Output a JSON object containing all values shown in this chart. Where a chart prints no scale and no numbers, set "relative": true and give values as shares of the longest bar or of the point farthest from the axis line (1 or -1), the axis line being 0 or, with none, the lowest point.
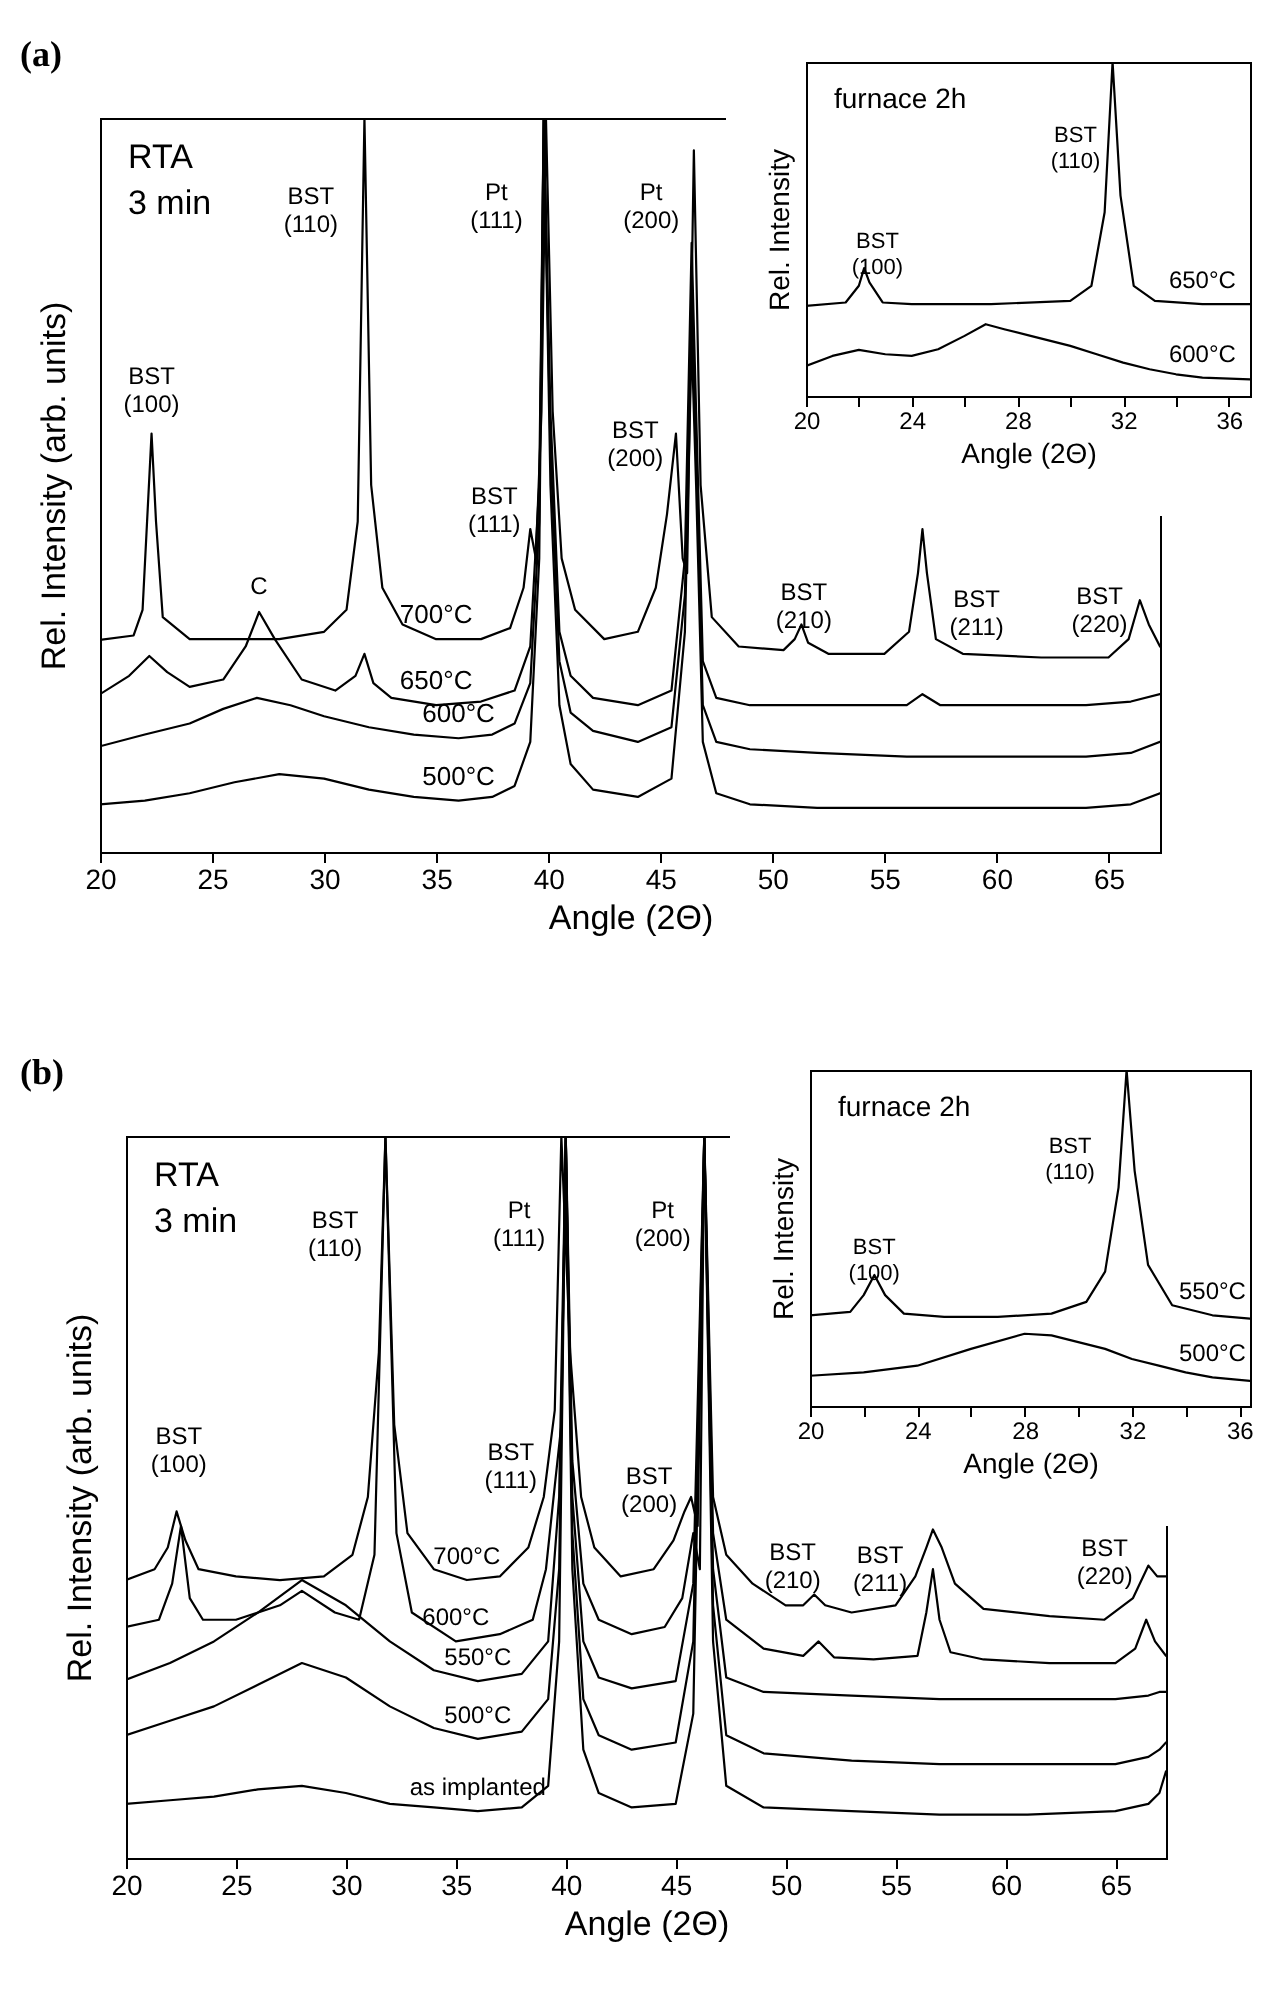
{
  "chart_data": [
    {
      "type": "line",
      "title": "(a)",
      "xlabel": "Angle (2Θ)",
      "ylabel": "Rel. Intensity (arb. units)",
      "relative": true,
      "xlim": [
        20,
        67.3
      ],
      "xticks": [
        20,
        25,
        30,
        35,
        40,
        45,
        50,
        55,
        60,
        65
      ],
      "annotations": [
        "RTA\n3 min",
        "BST\n(100)",
        "C",
        "BST\n(110)",
        "Pt\n(111)",
        "BST\n(111)",
        "Pt\n(200)",
        "BST\n(200)",
        "BST\n(210)",
        "BST\n(211)",
        "BST\n(220)"
      ],
      "series": [
        {
          "name": "700°C",
          "color": "#000000",
          "x": [
            20,
            21.5,
            21.9,
            22.1,
            22.3,
            22.5,
            22.8,
            24,
            26,
            28,
            30,
            31,
            31.5,
            31.8,
            32.1,
            32.6,
            33.5,
            35,
            37,
            38.3,
            38.9,
            39.2,
            39.45,
            39.7,
            39.9,
            40.2,
            40.6,
            41.2,
            42.5,
            44,
            44.8,
            45.3,
            45.7,
            46,
            46.2,
            46.5,
            46.8,
            47.3,
            48.5,
            50.5,
            51,
            51.3,
            51.6,
            52.5,
            55,
            56.1,
            56.5,
            56.7,
            56.9,
            57.3,
            58.5,
            62,
            65,
            65.9,
            66.4,
            66.8,
            67.3
          ],
          "values": [
            0.289,
            0.295,
            0.33,
            0.45,
            0.57,
            0.45,
            0.32,
            0.29,
            0.29,
            0.29,
            0.3,
            0.33,
            0.45,
            1,
            0.5,
            0.36,
            0.31,
            0.29,
            0.29,
            0.305,
            0.36,
            0.44,
            0.4,
            0.6,
            1,
            0.6,
            0.4,
            0.33,
            0.29,
            0.3,
            0.36,
            0.46,
            0.57,
            0.4,
            0.38,
            0.956,
            0.5,
            0.32,
            0.28,
            0.275,
            0.29,
            0.31,
            0.285,
            0.27,
            0.27,
            0.3,
            0.38,
            0.44,
            0.38,
            0.29,
            0.27,
            0.265,
            0.265,
            0.29,
            0.343,
            0.31,
            0.28
          ]
        },
        {
          "name": "650°C",
          "color": "#000000",
          "x": [
            20,
            21.3,
            22.2,
            23,
            24,
            25.5,
            26.5,
            27.1,
            27.8,
            29,
            30.5,
            31.4,
            31.8,
            32.2,
            33,
            35,
            37,
            38.5,
            39.2,
            39.6,
            39.8,
            40.1,
            40.5,
            41,
            42,
            44,
            45.5,
            46.1,
            46.4,
            46.6,
            46.9,
            47.5,
            49,
            52,
            56,
            56.7,
            57.5,
            60,
            64,
            66,
            67.3
          ],
          "values": [
            0.215,
            0.24,
            0.267,
            0.245,
            0.225,
            0.235,
            0.28,
            0.327,
            0.29,
            0.235,
            0.22,
            0.24,
            0.27,
            0.23,
            0.21,
            0.2,
            0.205,
            0.22,
            0.28,
            0.5,
            1,
            0.6,
            0.3,
            0.24,
            0.21,
            0.2,
            0.22,
            0.4,
            0.83,
            0.6,
            0.26,
            0.21,
            0.2,
            0.2,
            0.2,
            0.215,
            0.2,
            0.2,
            0.2,
            0.205,
            0.215
          ]
        },
        {
          "name": "600°C",
          "color": "#000000",
          "x": [
            20,
            22,
            24,
            25.5,
            27,
            28.5,
            30,
            32,
            34,
            36,
            37.5,
            38.5,
            39.2,
            39.6,
            39.8,
            40.1,
            40.5,
            41,
            42,
            44,
            45.5,
            46.1,
            46.4,
            46.6,
            46.9,
            47.5,
            49,
            52,
            56,
            60,
            64,
            66,
            67.3
          ],
          "values": [
            0.144,
            0.16,
            0.175,
            0.195,
            0.21,
            0.2,
            0.185,
            0.17,
            0.16,
            0.155,
            0.16,
            0.175,
            0.23,
            0.45,
            1,
            0.55,
            0.26,
            0.19,
            0.165,
            0.15,
            0.17,
            0.35,
            0.77,
            0.55,
            0.2,
            0.15,
            0.14,
            0.135,
            0.13,
            0.13,
            0.13,
            0.135,
            0.15
          ]
        },
        {
          "name": "500°C",
          "color": "#000000",
          "x": [
            20,
            22,
            24,
            26,
            28,
            30,
            32,
            34,
            36,
            37.5,
            38.5,
            39.2,
            39.6,
            39.8,
            40.1,
            40.5,
            41,
            42,
            44,
            45.5,
            46.1,
            46.4,
            46.6,
            46.9,
            47.5,
            49,
            52,
            56,
            60,
            64,
            66,
            67.3
          ],
          "values": [
            0.065,
            0.07,
            0.08,
            0.095,
            0.106,
            0.1,
            0.085,
            0.075,
            0.07,
            0.075,
            0.09,
            0.15,
            0.4,
            1,
            0.5,
            0.2,
            0.12,
            0.085,
            0.075,
            0.1,
            0.3,
            0.7,
            0.5,
            0.15,
            0.08,
            0.065,
            0.06,
            0.06,
            0.06,
            0.06,
            0.065,
            0.08
          ]
        }
      ]
    },
    {
      "type": "line",
      "xlabel": "Angle (2Θ)",
      "ylabel": "Rel. Intensity",
      "relative": true,
      "xlim": [
        20,
        36.8
      ],
      "xticks": [
        20,
        {
          "value": 22,
          "label": null
        },
        24,
        {
          "value": 26,
          "label": null
        },
        28,
        {
          "value": 30,
          "label": null
        },
        32,
        {
          "value": 34,
          "label": null
        },
        36
      ],
      "annotations": [
        "furnace 2h",
        "BST\n(100)",
        "BST\n(110)"
      ],
      "series": [
        {
          "name": "650°C",
          "color": "#000000",
          "x": [
            20,
            21.5,
            22,
            22.2,
            22.4,
            22.9,
            24,
            27,
            30,
            30.8,
            31.3,
            31.6,
            31.9,
            32.4,
            33.2,
            35,
            36.8
          ],
          "values": [
            0.27,
            0.28,
            0.33,
            0.383,
            0.34,
            0.28,
            0.275,
            0.275,
            0.285,
            0.33,
            0.55,
            1,
            0.6,
            0.33,
            0.285,
            0.275,
            0.275
          ]
        },
        {
          "name": "600°C",
          "color": "#000000",
          "x": [
            20,
            21,
            22,
            23,
            24,
            25,
            26,
            26.8,
            27.5,
            28.5,
            30,
            31,
            32,
            33,
            34,
            35,
            36.8
          ],
          "values": [
            0.09,
            0.12,
            0.138,
            0.125,
            0.12,
            0.14,
            0.18,
            0.215,
            0.2,
            0.18,
            0.15,
            0.125,
            0.1,
            0.08,
            0.065,
            0.055,
            0.05
          ]
        }
      ]
    },
    {
      "type": "line",
      "title": "(b)",
      "xlabel": "Angle (2Θ)",
      "ylabel": "Rel. Intensity (arb. units)",
      "relative": true,
      "xlim": [
        20,
        67.3
      ],
      "xticks": [
        20,
        25,
        30,
        35,
        40,
        45,
        50,
        55,
        60,
        65
      ],
      "annotations": [
        "RTA\n3 min",
        "BST\n(100)",
        "BST\n(110)",
        "Pt\n(111)",
        "BST\n(111)",
        "Pt\n(200)",
        "BST\n(200)",
        "BST\n(210)",
        "BST\n(211)",
        "BST\n(220)"
      ],
      "series": [
        {
          "name": "700°C",
          "color": "#000000",
          "x": [
            20,
            21.3,
            21.9,
            22.3,
            22.7,
            23.3,
            25,
            27,
            29,
            30.3,
            31,
            31.5,
            31.8,
            32.2,
            32.8,
            34,
            35.5,
            37,
            38.3,
            39,
            39.5,
            39.8,
            40.2,
            40.7,
            41.3,
            42.5,
            44,
            44.9,
            45.4,
            45.7,
            46,
            46.3,
            46.7,
            47.3,
            48.5,
            50,
            50.8,
            51.3,
            51.8,
            53,
            55,
            55.9,
            56.4,
            56.7,
            57.1,
            57.7,
            59,
            62,
            64.5,
            65.8,
            66.5,
            66.9,
            67.3
          ],
          "values": [
            0.385,
            0.4,
            0.43,
            0.48,
            0.44,
            0.4,
            0.39,
            0.385,
            0.39,
            0.42,
            0.5,
            0.7,
            1,
            0.6,
            0.45,
            0.4,
            0.385,
            0.39,
            0.43,
            0.5,
            0.62,
            1,
            0.7,
            0.5,
            0.43,
            0.39,
            0.4,
            0.44,
            0.48,
            0.5,
            0.46,
            1,
            0.5,
            0.42,
            0.38,
            0.35,
            0.35,
            0.365,
            0.35,
            0.34,
            0.35,
            0.39,
            0.43,
            0.455,
            0.43,
            0.38,
            0.345,
            0.335,
            0.33,
            0.36,
            0.405,
            0.39,
            0.39
          ]
        },
        {
          "name": "600°C",
          "color": "#000000",
          "x": [
            20,
            21.5,
            22.1,
            22.5,
            22.9,
            23.5,
            25,
            27,
            28,
            29.5,
            30.6,
            31.3,
            31.8,
            32.3,
            33,
            35,
            37,
            38.5,
            39.1,
            39.5,
            39.8,
            40,
            40.3,
            40.8,
            41.5,
            43,
            44.5,
            45.3,
            45.8,
            46.1,
            46.3,
            46.7,
            47.3,
            49,
            50.8,
            51.5,
            52.2,
            54,
            56,
            56.4,
            56.7,
            57,
            57.5,
            59,
            62,
            65,
            65.9,
            66.4,
            66.8,
            67.3
          ],
          "values": [
            0.32,
            0.33,
            0.38,
            0.46,
            0.36,
            0.33,
            0.33,
            0.35,
            0.37,
            0.34,
            0.33,
            0.42,
            1,
            0.45,
            0.34,
            0.3,
            0.31,
            0.33,
            0.4,
            0.515,
            0.6,
            1,
            0.55,
            0.38,
            0.33,
            0.31,
            0.32,
            0.36,
            0.45,
            0.4,
            1,
            0.45,
            0.33,
            0.29,
            0.28,
            0.3,
            0.278,
            0.275,
            0.28,
            0.34,
            0.4,
            0.33,
            0.285,
            0.275,
            0.27,
            0.27,
            0.29,
            0.33,
            0.3,
            0.28
          ]
        },
        {
          "name": "550°C",
          "color": "#000000",
          "x": [
            20,
            22,
            24,
            26,
            28,
            30,
            32,
            34,
            36,
            38,
            39.2,
            39.7,
            40,
            40.3,
            40.8,
            41.5,
            43,
            45,
            45.8,
            46.3,
            46.7,
            47.3,
            49,
            53,
            57,
            61,
            65,
            66.5,
            67,
            67.3
          ],
          "values": [
            0.247,
            0.27,
            0.3,
            0.34,
            0.385,
            0.35,
            0.3,
            0.26,
            0.245,
            0.255,
            0.3,
            0.5,
            1,
            0.5,
            0.3,
            0.25,
            0.235,
            0.245,
            0.38,
            1,
            0.4,
            0.25,
            0.23,
            0.225,
            0.22,
            0.22,
            0.22,
            0.225,
            0.23,
            0.23
          ]
        },
        {
          "name": "500°C",
          "color": "#000000",
          "x": [
            20,
            22,
            24,
            26,
            28,
            30,
            32,
            34,
            36,
            38,
            39.2,
            39.7,
            40,
            40.3,
            40.8,
            41.5,
            43,
            45,
            45.8,
            46.3,
            46.7,
            47.3,
            49,
            53,
            57,
            61,
            65,
            66.5,
            67,
            67.3
          ],
          "values": [
            0.17,
            0.19,
            0.21,
            0.24,
            0.27,
            0.25,
            0.21,
            0.18,
            0.165,
            0.175,
            0.22,
            0.4,
            1,
            0.45,
            0.22,
            0.17,
            0.15,
            0.16,
            0.3,
            1,
            0.35,
            0.17,
            0.145,
            0.135,
            0.13,
            0.13,
            0.13,
            0.14,
            0.15,
            0.16
          ]
        },
        {
          "name": "as implanted",
          "color": "#000000",
          "x": [
            20,
            22,
            24,
            26,
            28,
            30,
            32,
            34,
            36,
            38,
            39.2,
            39.7,
            40,
            40.3,
            40.8,
            41.5,
            43,
            45,
            45.8,
            46.3,
            46.7,
            47.3,
            49,
            53,
            57,
            61,
            65,
            66.5,
            67,
            67.3
          ],
          "values": [
            0.075,
            0.08,
            0.085,
            0.095,
            0.1,
            0.09,
            0.075,
            0.07,
            0.065,
            0.07,
            0.1,
            0.3,
            1,
            0.4,
            0.15,
            0.09,
            0.07,
            0.075,
            0.2,
            1,
            0.3,
            0.1,
            0.07,
            0.065,
            0.06,
            0.06,
            0.065,
            0.075,
            0.09,
            0.12
          ]
        }
      ]
    },
    {
      "type": "line",
      "xlabel": "Angle (2Θ)",
      "ylabel": "Rel. Intensity",
      "relative": true,
      "xlim": [
        20,
        36.4
      ],
      "xticks": [
        20,
        {
          "value": 22,
          "label": null
        },
        24,
        {
          "value": 26,
          "label": null
        },
        28,
        {
          "value": 30,
          "label": null
        },
        32,
        {
          "value": 34,
          "label": null
        },
        36
      ],
      "annotations": [
        "furnace 2h",
        "BST\n(100)",
        "BST\n(110)"
      ],
      "series": [
        {
          "name": "550°C",
          "color": "#000000",
          "x": [
            20,
            21.5,
            22,
            22.4,
            22.8,
            23.5,
            25,
            27,
            29,
            30.3,
            31,
            31.5,
            31.8,
            32.1,
            32.6,
            33.5,
            35,
            36.4
          ],
          "values": [
            0.27,
            0.28,
            0.33,
            0.39,
            0.33,
            0.275,
            0.265,
            0.265,
            0.275,
            0.31,
            0.4,
            0.65,
            1,
            0.7,
            0.42,
            0.3,
            0.27,
            0.26
          ]
        },
        {
          "name": "500°C",
          "color": "#000000",
          "x": [
            20,
            22,
            24,
            26,
            28,
            29,
            30,
            31,
            32,
            33,
            34,
            35,
            36.4
          ],
          "values": [
            0.09,
            0.1,
            0.12,
            0.17,
            0.215,
            0.21,
            0.19,
            0.17,
            0.14,
            0.12,
            0.1,
            0.085,
            0.075
          ]
        }
      ]
    }
  ]
}
